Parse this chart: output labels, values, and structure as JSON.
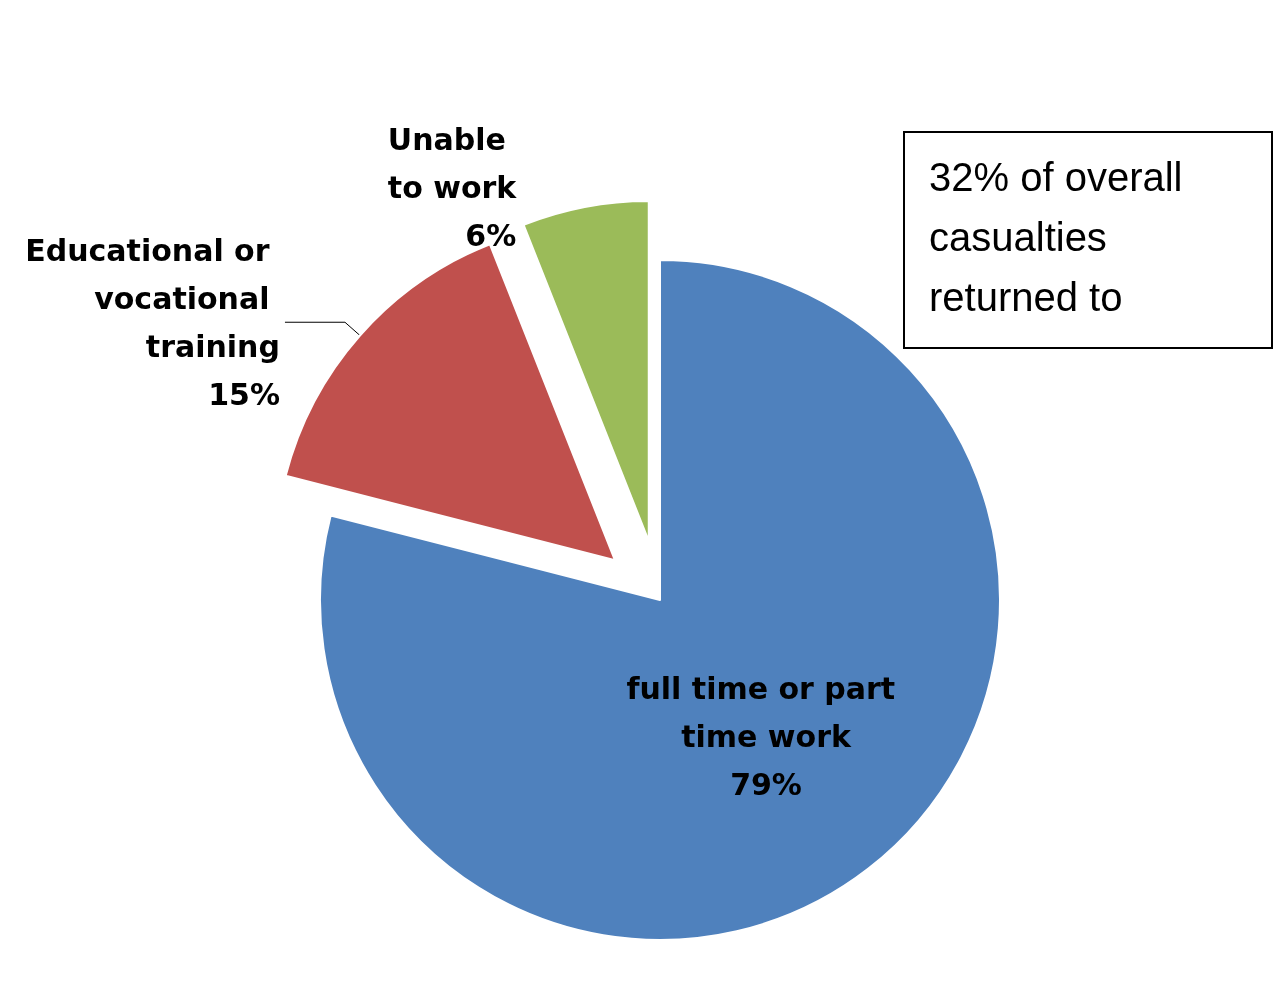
{
  "chart_data": {
    "type": "pie",
    "categories": [
      "full time or part time work",
      "Educational or vocational training",
      "Unable to work"
    ],
    "values": [
      79,
      15,
      6
    ],
    "colors": [
      "#4f81bd",
      "#c0504d",
      "#9bbb59"
    ],
    "annotations": [
      "32% of overall casualties returned to"
    ],
    "value_labels": [
      "79%",
      "15%",
      "6%"
    ],
    "legend": false
  }
}
